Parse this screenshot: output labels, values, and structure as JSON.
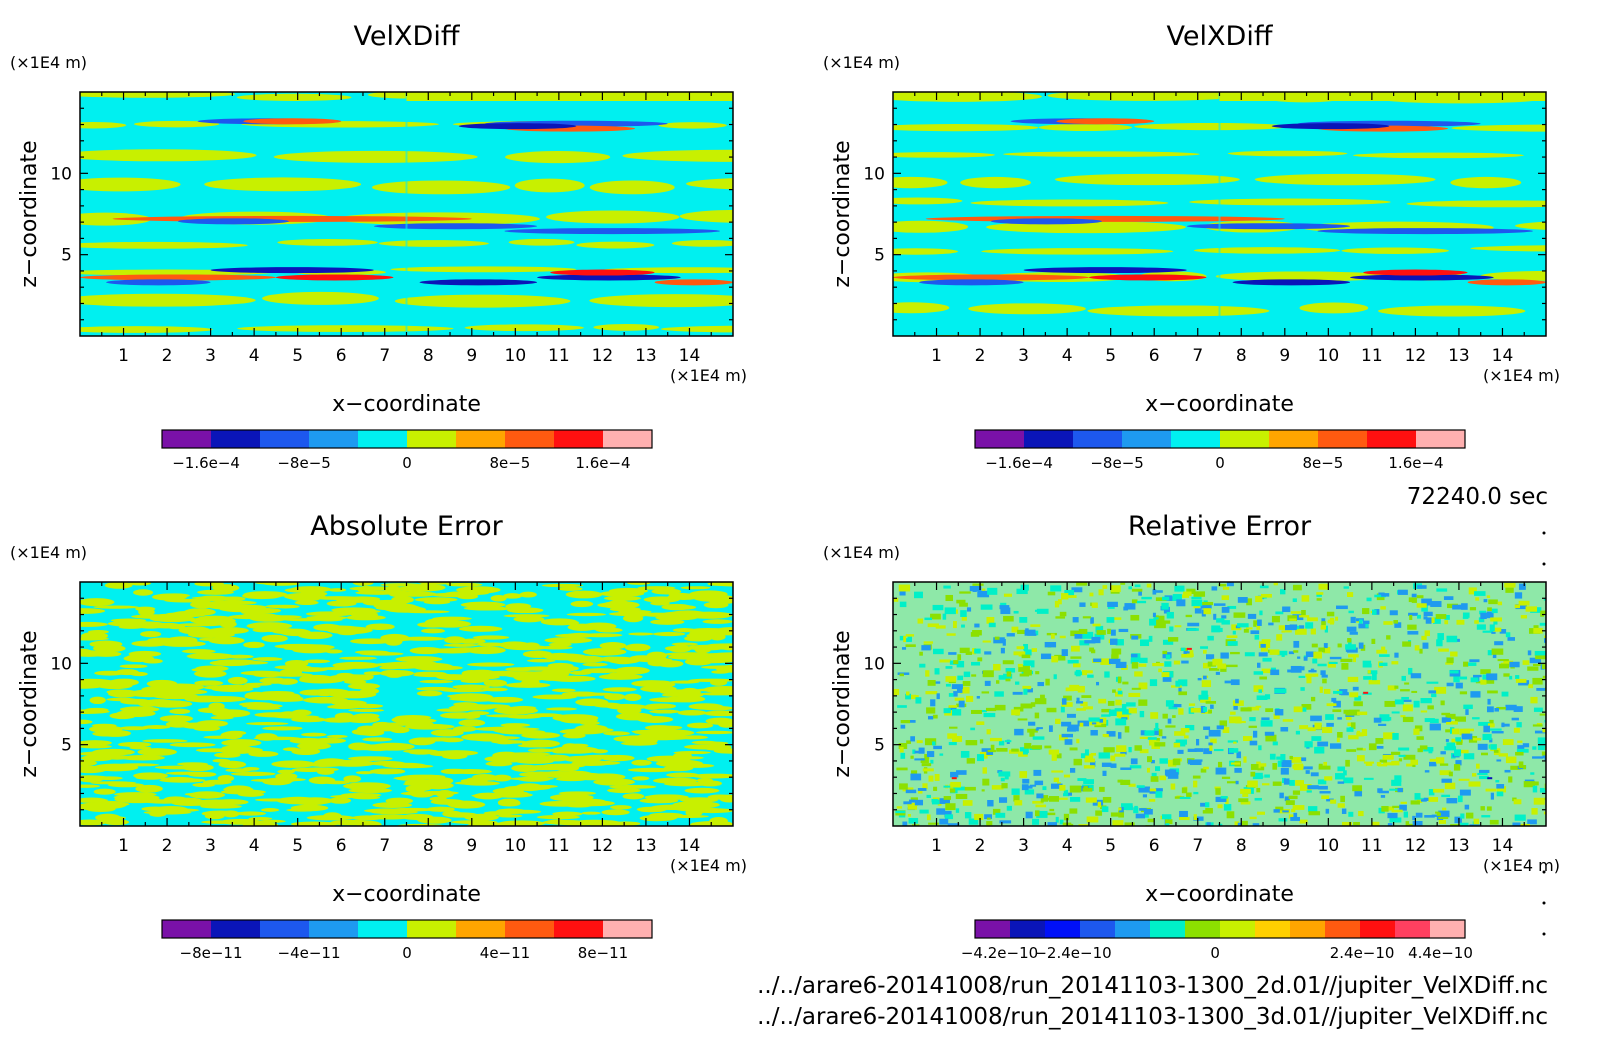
{
  "time_label": "72240.0 sec",
  "file_lines": [
    "../../arare6-20141008/run_20141103-1300_2d.01//jupiter_VelXDiff.nc",
    "../../arare6-20141008/run_20141103-1300_3d.01//jupiter_VelXDiff.nc"
  ],
  "chart_data": [
    {
      "type": "heatmap",
      "title": "VelXDiff",
      "xlabel": "x−coordinate",
      "ylabel": "z−coordinate",
      "x_unit": "(×1E4 m)",
      "y_unit": "(×1E4 m)",
      "xlim": [
        0,
        15
      ],
      "ylim": [
        0,
        15
      ],
      "x_ticks": [
        1,
        2,
        3,
        4,
        5,
        6,
        7,
        8,
        9,
        10,
        11,
        12,
        13,
        14
      ],
      "y_ticks": [
        5,
        10
      ],
      "colorbar": {
        "colors": [
          "#7a11a8",
          "#0a15b8",
          "#1d58ee",
          "#1e9af0",
          "#00f0f0",
          "#c8f000",
          "#ffa500",
          "#ff5a10",
          "#ff1010",
          "#ffb0b0"
        ],
        "tick_labels": [
          "−1.6e−4",
          "−8e−5",
          "0",
          "8e−5",
          "1.6e−4"
        ]
      }
    },
    {
      "type": "heatmap",
      "title": "VelXDiff",
      "xlabel": "x−coordinate",
      "ylabel": "z−coordinate",
      "x_unit": "(×1E4 m)",
      "y_unit": "(×1E4 m)",
      "xlim": [
        0,
        15
      ],
      "ylim": [
        0,
        15
      ],
      "x_ticks": [
        1,
        2,
        3,
        4,
        5,
        6,
        7,
        8,
        9,
        10,
        11,
        12,
        13,
        14
      ],
      "y_ticks": [
        5,
        10
      ],
      "colorbar": {
        "colors": [
          "#7a11a8",
          "#0a15b8",
          "#1d58ee",
          "#1e9af0",
          "#00f0f0",
          "#c8f000",
          "#ffa500",
          "#ff5a10",
          "#ff1010",
          "#ffb0b0"
        ],
        "tick_labels": [
          "−1.6e−4",
          "−8e−5",
          "0",
          "8e−5",
          "1.6e−4"
        ]
      }
    },
    {
      "type": "heatmap",
      "title": "Absolute Error",
      "xlabel": "x−coordinate",
      "ylabel": "z−coordinate",
      "x_unit": "(×1E4 m)",
      "y_unit": "(×1E4 m)",
      "xlim": [
        0,
        15
      ],
      "ylim": [
        0,
        15
      ],
      "x_ticks": [
        1,
        2,
        3,
        4,
        5,
        6,
        7,
        8,
        9,
        10,
        11,
        12,
        13,
        14
      ],
      "y_ticks": [
        5,
        10
      ],
      "colorbar": {
        "colors": [
          "#7a11a8",
          "#0a15b8",
          "#1d58ee",
          "#1e9af0",
          "#00f0f0",
          "#c8f000",
          "#ffa500",
          "#ff5a10",
          "#ff1010",
          "#ffb0b0"
        ],
        "tick_labels": [
          "−8e−11",
          "−4e−11",
          "0",
          "4e−11",
          "8e−11"
        ]
      }
    },
    {
      "type": "heatmap",
      "title": "Relative Error",
      "xlabel": "x−coordinate",
      "ylabel": "z−coordinate",
      "x_unit": "(×1E4 m)",
      "y_unit": "(×1E4 m)",
      "xlim": [
        0,
        15
      ],
      "ylim": [
        0,
        15
      ],
      "x_ticks": [
        1,
        2,
        3,
        4,
        5,
        6,
        7,
        8,
        9,
        10,
        11,
        12,
        13,
        14
      ],
      "y_ticks": [
        5,
        10
      ],
      "colorbar": {
        "colors": [
          "#7a11a8",
          "#0a15b8",
          "#0010f8",
          "#1d58ee",
          "#1e9af0",
          "#00f0c8",
          "#8ce000",
          "#c8f000",
          "#ffd000",
          "#ffa500",
          "#ff5a10",
          "#ff1010",
          "#ff4060",
          "#ffb0b0"
        ],
        "tick_labels": [
          "−4.2e−10",
          "−2.4e−10",
          "0",
          "2.4e−10",
          "4.4e−10"
        ]
      }
    }
  ]
}
